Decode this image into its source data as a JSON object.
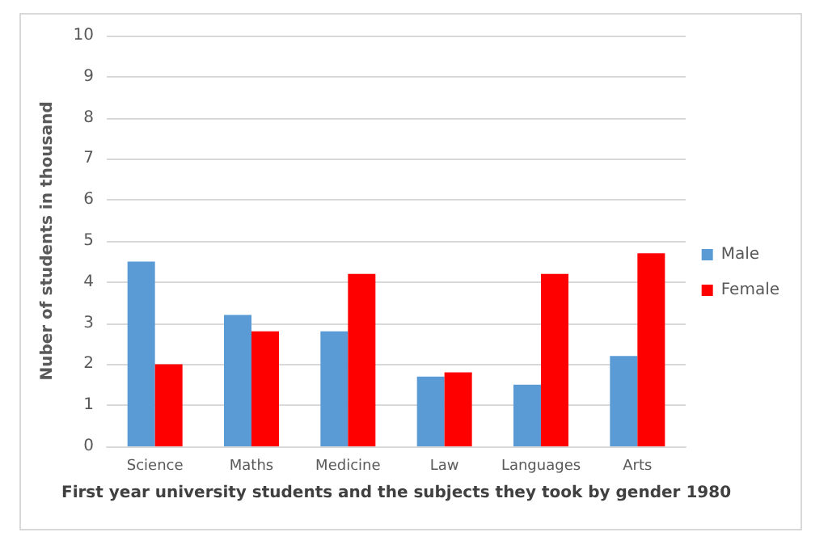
{
  "chart_data": {
    "type": "bar",
    "xlabel": "First year university students and the subjects they took by gender 1980",
    "ylabel": "Nuber of students in thousand",
    "categories": [
      "Science",
      "Maths",
      "Medicine",
      "Law",
      "Languages",
      "Arts"
    ],
    "series": [
      {
        "name": "Male",
        "color": "#5b9bd5",
        "values": [
          4.5,
          3.2,
          2.8,
          1.7,
          1.5,
          2.2
        ]
      },
      {
        "name": "Female",
        "color": "#ff0000",
        "values": [
          2.0,
          2.8,
          4.2,
          1.8,
          4.2,
          4.7
        ]
      }
    ],
    "ylim": [
      0,
      10
    ],
    "yticks": [
      0,
      1,
      2,
      3,
      4,
      5,
      6,
      7,
      8,
      9,
      10
    ],
    "grid": "y",
    "legend": "right"
  }
}
